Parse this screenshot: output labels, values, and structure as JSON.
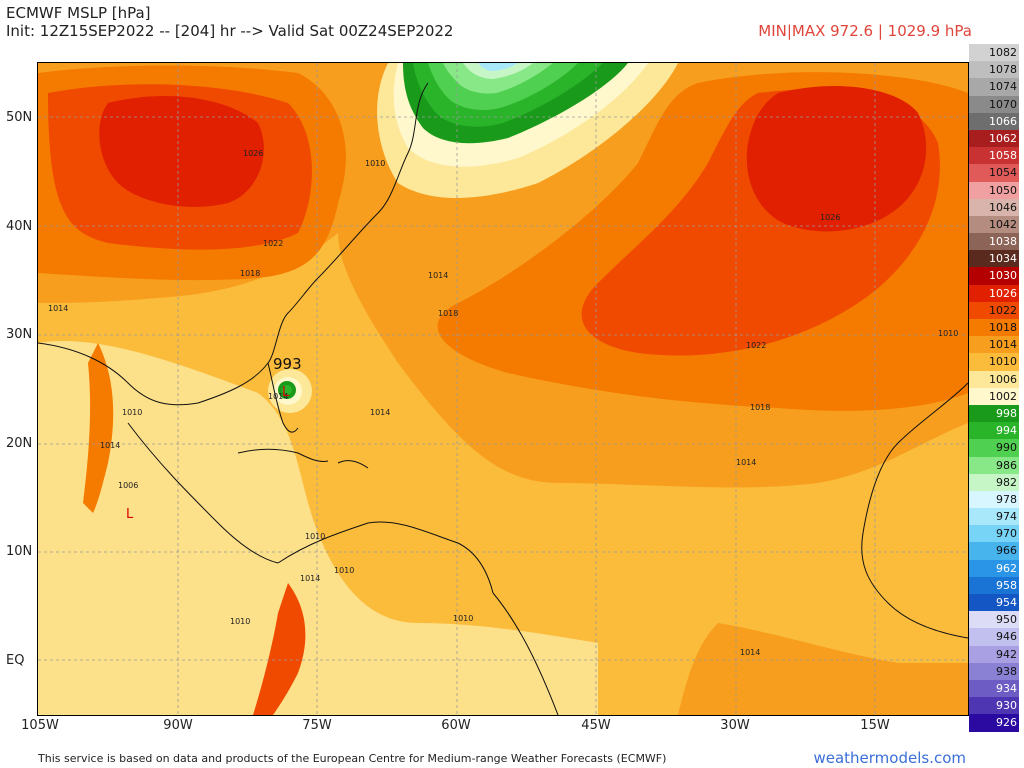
{
  "header": {
    "title": "ECMWF MSLP [hPa]",
    "init": "Init: 12Z15SEP2022 -- [204] hr --> Valid Sat 00Z24SEP2022",
    "minmax": "MIN|MAX 972.6 | 1029.9 hPa"
  },
  "axes": {
    "lat_labels": [
      "50N",
      "40N",
      "30N",
      "20N",
      "10N",
      "EQ"
    ],
    "lon_labels": [
      "105W",
      "90W",
      "75W",
      "60W",
      "45W",
      "30W",
      "15W"
    ]
  },
  "map": {
    "low_center_value": "993",
    "low_marker": "L",
    "contour_labels": [
      "1026",
      "1022",
      "1018",
      "1014",
      "1010",
      "1014",
      "1018",
      "1022",
      "1026",
      "1014",
      "1010",
      "1014",
      "1018",
      "1014",
      "1010",
      "1010",
      "1014",
      "1010",
      "1010",
      "1014",
      "1010",
      "1014",
      "1006"
    ]
  },
  "colorbar": {
    "items": [
      {
        "label": "1082",
        "color": "#d2d2d2"
      },
      {
        "label": "1078",
        "color": "#bebebe"
      },
      {
        "label": "1074",
        "color": "#a8a8a8"
      },
      {
        "label": "1070",
        "color": "#8a8a8a"
      },
      {
        "label": "1066",
        "color": "#6e6e6e"
      },
      {
        "label": "1062",
        "color": "#a81e1e"
      },
      {
        "label": "1058",
        "color": "#c83232"
      },
      {
        "label": "1054",
        "color": "#e05a5a"
      },
      {
        "label": "1050",
        "color": "#f0a0a0"
      },
      {
        "label": "1046",
        "color": "#d8b4ac"
      },
      {
        "label": "1042",
        "color": "#b48c80"
      },
      {
        "label": "1038",
        "color": "#8c6458"
      },
      {
        "label": "1034",
        "color": "#5a2a1e"
      },
      {
        "label": "1030",
        "color": "#b40000"
      },
      {
        "label": "1026",
        "color": "#e02000"
      },
      {
        "label": "1022",
        "color": "#f04a00"
      },
      {
        "label": "1018",
        "color": "#f57a00"
      },
      {
        "label": "1014",
        "color": "#f79e1e"
      },
      {
        "label": "1010",
        "color": "#fbbc3c"
      },
      {
        "label": "1006",
        "color": "#fde89a"
      },
      {
        "label": "1002",
        "color": "#fff8cc"
      },
      {
        "label": "998",
        "color": "#1a9a1a"
      },
      {
        "label": "994",
        "color": "#2ab42a"
      },
      {
        "label": "990",
        "color": "#50d050"
      },
      {
        "label": "986",
        "color": "#88e888"
      },
      {
        "label": "982",
        "color": "#c6f6c6"
      },
      {
        "label": "978",
        "color": "#d8f6ff"
      },
      {
        "label": "974",
        "color": "#a8e8fa"
      },
      {
        "label": "970",
        "color": "#78d4f6"
      },
      {
        "label": "966",
        "color": "#48b4ee"
      },
      {
        "label": "962",
        "color": "#2a94e6"
      },
      {
        "label": "958",
        "color": "#1a74d6"
      },
      {
        "label": "954",
        "color": "#1456c4"
      },
      {
        "label": "950",
        "color": "#dcdcf6"
      },
      {
        "label": "946",
        "color": "#c2c0ee"
      },
      {
        "label": "942",
        "color": "#a8a0e2"
      },
      {
        "label": "938",
        "color": "#8a80d4"
      },
      {
        "label": "934",
        "color": "#6c5cc4"
      },
      {
        "label": "930",
        "color": "#4e36b2"
      },
      {
        "label": "926",
        "color": "#2a0aa0"
      }
    ]
  },
  "footer": {
    "disclaimer": "This service is based on data and products of the European Centre for Medium-range Weather Forecasts (ECMWF)",
    "brand": "weathermodels.com"
  }
}
